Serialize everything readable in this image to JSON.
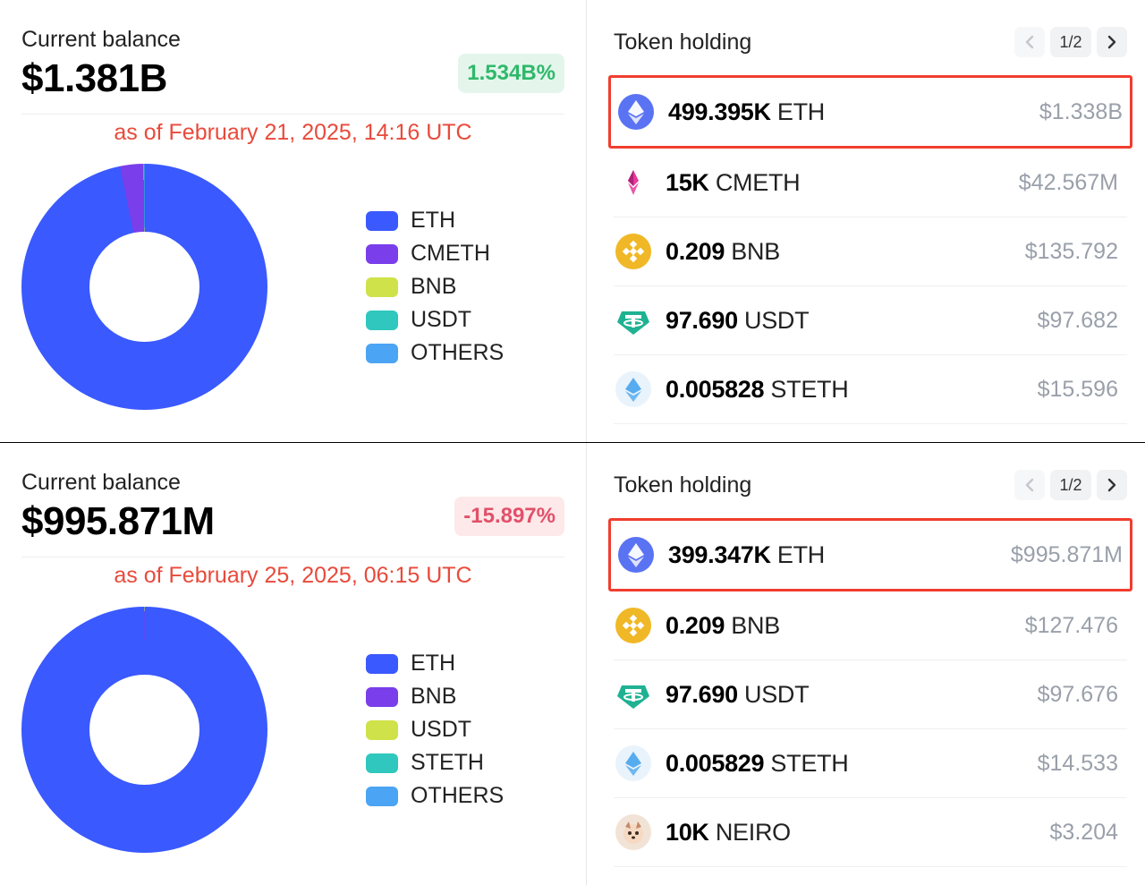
{
  "panels": [
    {
      "balance_label": "Current balance",
      "balance_value": "$1.381B",
      "change_text": "1.534B%",
      "change_dir": "pos",
      "asof": "as of February 21, 2025, 14:16 UTC",
      "asof_color": "#e84a3b",
      "donut": {
        "size": 275,
        "hole": 0.45,
        "slices": [
          {
            "label": "ETH",
            "pct": 96.8,
            "color": "#3a59ff"
          },
          {
            "label": "CMETH",
            "pct": 3.1,
            "color": "#7a3eea"
          },
          {
            "label": "BNB",
            "pct": 0.04,
            "color": "#cfe24a"
          },
          {
            "label": "USDT",
            "pct": 0.03,
            "color": "#2fc7be"
          },
          {
            "label": "OTHERS",
            "pct": 0.03,
            "color": "#4ba4f4"
          }
        ]
      },
      "token_header": "Token holding",
      "pager": {
        "label": "1/2",
        "prev_enabled": false,
        "next_enabled": true
      },
      "tokens": [
        {
          "amount": "499.395K",
          "symbol": "ETH",
          "value": "$1.338B",
          "highlight": true,
          "icon_bg": "#5a73f3",
          "icon_fg": "#ffffff",
          "icon": "eth"
        },
        {
          "amount": "15K",
          "symbol": "CMETH",
          "value": "$42.567M",
          "highlight": false,
          "icon_bg": "#ffffff",
          "icon_fg": "#e6399a",
          "icon": "cmeth"
        },
        {
          "amount": "0.209",
          "symbol": "BNB",
          "value": "$135.792",
          "highlight": false,
          "icon_bg": "#f0b826",
          "icon_fg": "#ffffff",
          "icon": "bnb"
        },
        {
          "amount": "97.690",
          "symbol": "USDT",
          "value": "$97.682",
          "highlight": false,
          "icon_bg": "#1fb292",
          "icon_fg": "#ffffff",
          "icon": "usdt"
        },
        {
          "amount": "0.005828",
          "symbol": "STETH",
          "value": "$15.596",
          "highlight": false,
          "icon_bg": "#e9f3fc",
          "icon_fg": "#4fa8ef",
          "icon": "steth"
        }
      ]
    },
    {
      "balance_label": "Current balance",
      "balance_value": "$995.871M",
      "change_text": "-15.897%",
      "change_dir": "neg",
      "asof": "as of February 25, 2025, 06:15 UTC",
      "asof_color": "#e84a3b",
      "donut": {
        "size": 275,
        "hole": 0.45,
        "slices": [
          {
            "label": "ETH",
            "pct": 99.96,
            "color": "#3a59ff"
          },
          {
            "label": "BNB",
            "pct": 0.01,
            "color": "#7a3eea"
          },
          {
            "label": "USDT",
            "pct": 0.01,
            "color": "#cfe24a"
          },
          {
            "label": "STETH",
            "pct": 0.01,
            "color": "#2fc7be"
          },
          {
            "label": "OTHERS",
            "pct": 0.01,
            "color": "#4ba4f4"
          }
        ]
      },
      "token_header": "Token holding",
      "pager": {
        "label": "1/2",
        "prev_enabled": false,
        "next_enabled": true
      },
      "tokens": [
        {
          "amount": "399.347K",
          "symbol": "ETH",
          "value": "$995.871M",
          "highlight": true,
          "icon_bg": "#5a73f3",
          "icon_fg": "#ffffff",
          "icon": "eth"
        },
        {
          "amount": "0.209",
          "symbol": "BNB",
          "value": "$127.476",
          "highlight": false,
          "icon_bg": "#f0b826",
          "icon_fg": "#ffffff",
          "icon": "bnb"
        },
        {
          "amount": "97.690",
          "symbol": "USDT",
          "value": "$97.676",
          "highlight": false,
          "icon_bg": "#1fb292",
          "icon_fg": "#ffffff",
          "icon": "usdt"
        },
        {
          "amount": "0.005829",
          "symbol": "STETH",
          "value": "$14.533",
          "highlight": false,
          "icon_bg": "#e9f3fc",
          "icon_fg": "#4fa8ef",
          "icon": "steth"
        },
        {
          "amount": "10K",
          "symbol": "NEIRO",
          "value": "$3.204",
          "highlight": false,
          "icon_bg": "#f2e3d7",
          "icon_fg": "#c7886a",
          "icon": "neiro"
        }
      ]
    }
  ]
}
